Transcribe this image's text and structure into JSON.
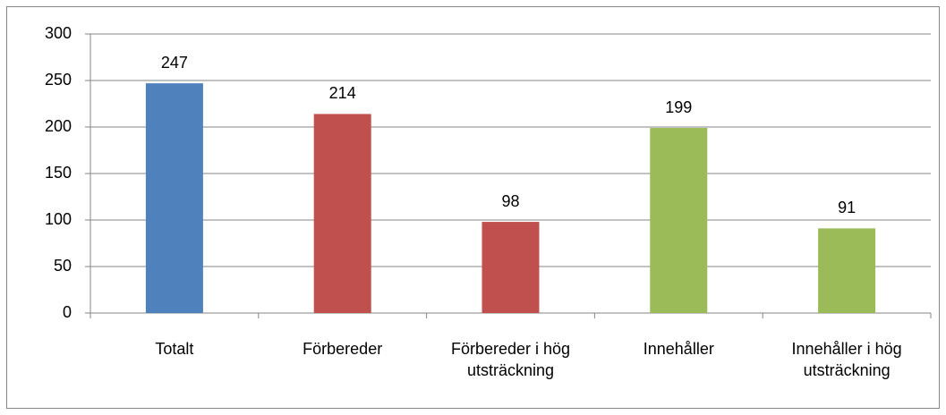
{
  "chart_data": {
    "type": "bar",
    "categories": [
      "Totalt",
      "Förbereder",
      "Förbereder i hög utsträckning",
      "Innehåller",
      "Innehåller i hög utsträckning"
    ],
    "values": [
      247,
      214,
      98,
      199,
      91
    ],
    "colors": [
      "#4f81bd",
      "#c0504d",
      "#c0504d",
      "#9bbb59",
      "#9bbb59"
    ],
    "ylim": [
      0,
      300
    ],
    "yticks": [
      0,
      50,
      100,
      150,
      200,
      250,
      300
    ],
    "grid": true
  }
}
